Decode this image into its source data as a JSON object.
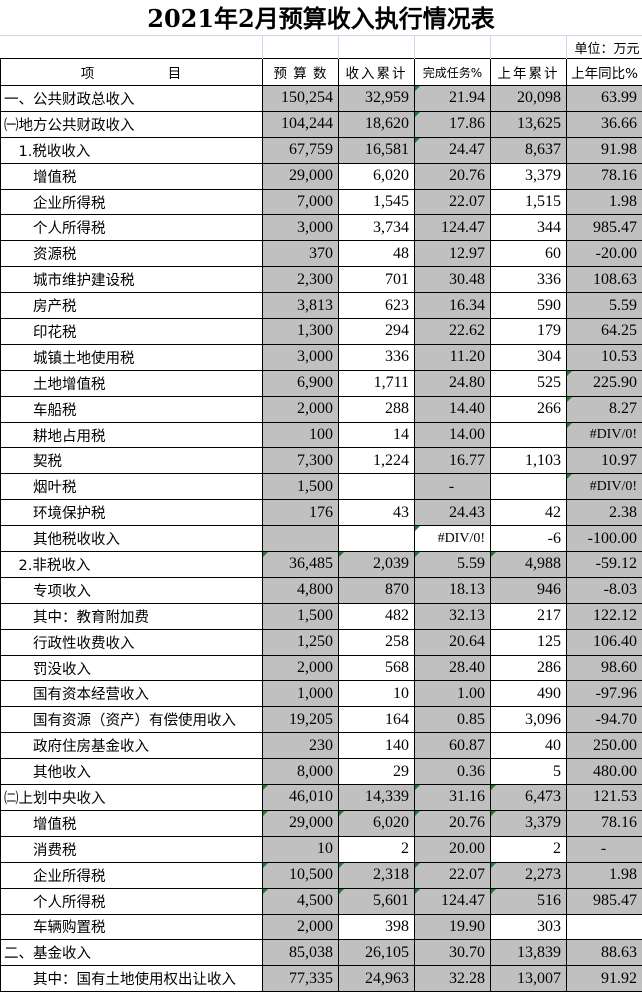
{
  "title": "2021年2月预算收入执行情况表",
  "unit": "单位：万元",
  "headers": [
    "项　　　　　目",
    "预 算 数",
    "收入累计",
    "完成任务%",
    "上年累计",
    "上年同比%"
  ],
  "rows": [
    {
      "item": "一、公共财政总收入",
      "budget": "150,254",
      "income": "32,959",
      "pct": "21.94",
      "prev": "20,098",
      "yoy": "63.99"
    },
    {
      "item": "㈠地方公共财政收入",
      "budget": "104,244",
      "income": "18,620",
      "pct": "17.86",
      "prev": "13,625",
      "yoy": "36.66"
    },
    {
      "item": "　1.税收收入",
      "budget": "67,759",
      "income": "16,581",
      "pct": "24.47",
      "prev": "8,637",
      "yoy": "91.98"
    },
    {
      "item": "　　增值税",
      "budget": "29,000",
      "income": "6,020",
      "pct": "20.76",
      "prev": "3,379",
      "yoy": "78.16"
    },
    {
      "item": "　　企业所得税",
      "budget": "7,000",
      "income": "1,545",
      "pct": "22.07",
      "prev": "1,515",
      "yoy": "1.98"
    },
    {
      "item": "　　个人所得税",
      "budget": "3,000",
      "income": "3,734",
      "pct": "124.47",
      "prev": "344",
      "yoy": "985.47"
    },
    {
      "item": "　　资源税",
      "budget": "370",
      "income": "48",
      "pct": "12.97",
      "prev": "60",
      "yoy": "-20.00"
    },
    {
      "item": "　　城市维护建设税",
      "budget": "2,300",
      "income": "701",
      "pct": "30.48",
      "prev": "336",
      "yoy": "108.63"
    },
    {
      "item": "　　房产税",
      "budget": "3,813",
      "income": "623",
      "pct": "16.34",
      "prev": "590",
      "yoy": "5.59"
    },
    {
      "item": "　　印花税",
      "budget": "1,300",
      "income": "294",
      "pct": "22.62",
      "prev": "179",
      "yoy": "64.25"
    },
    {
      "item": "　　城镇土地使用税",
      "budget": "3,000",
      "income": "336",
      "pct": "11.20",
      "prev": "304",
      "yoy": "10.53"
    },
    {
      "item": "　　土地增值税",
      "budget": "6,900",
      "income": "1,711",
      "pct": "24.80",
      "prev": "525",
      "yoy": "225.90"
    },
    {
      "item": "　　车船税",
      "budget": "2,000",
      "income": "288",
      "pct": "14.40",
      "prev": "266",
      "yoy": "8.27"
    },
    {
      "item": "　　耕地占用税",
      "budget": "100",
      "income": "14",
      "pct": "14.00",
      "prev": "",
      "yoy": "#DIV/0!"
    },
    {
      "item": "　　契税",
      "budget": "7,300",
      "income": "1,224",
      "pct": "16.77",
      "prev": "1,103",
      "yoy": "10.97"
    },
    {
      "item": "　　烟叶税",
      "budget": "1,500",
      "income": "",
      "pct": "-",
      "prev": "",
      "yoy": "#DIV/0!"
    },
    {
      "item": "　　环境保护税",
      "budget": "176",
      "income": "43",
      "pct": "24.43",
      "prev": "42",
      "yoy": "2.38"
    },
    {
      "item": "　　其他税收收入",
      "budget": "",
      "income": "",
      "pct": "#DIV/0!",
      "prev": "-6",
      "yoy": "-100.00"
    },
    {
      "item": "　2.非税收入",
      "budget": "36,485",
      "income": "2,039",
      "pct": "5.59",
      "prev": "4,988",
      "yoy": "-59.12"
    },
    {
      "item": "　　专项收入",
      "budget": "4,800",
      "income": "870",
      "pct": "18.13",
      "prev": "946",
      "yoy": "-8.03"
    },
    {
      "item": "　　其中：教育附加费",
      "budget": "1,500",
      "income": "482",
      "pct": "32.13",
      "prev": "217",
      "yoy": "122.12"
    },
    {
      "item": "　　行政性收费收入",
      "budget": "1,250",
      "income": "258",
      "pct": "20.64",
      "prev": "125",
      "yoy": "106.40"
    },
    {
      "item": "　　罚没收入",
      "budget": "2,000",
      "income": "568",
      "pct": "28.40",
      "prev": "286",
      "yoy": "98.60"
    },
    {
      "item": "　　国有资本经营收入",
      "budget": "1,000",
      "income": "10",
      "pct": "1.00",
      "prev": "490",
      "yoy": "-97.96"
    },
    {
      "item": "　　国有资源（资产）有偿使用收入",
      "budget": "19,205",
      "income": "164",
      "pct": "0.85",
      "prev": "3,096",
      "yoy": "-94.70"
    },
    {
      "item": "　　政府住房基金收入",
      "budget": "230",
      "income": "140",
      "pct": "60.87",
      "prev": "40",
      "yoy": "250.00"
    },
    {
      "item": "　　其他收入",
      "budget": "8,000",
      "income": "29",
      "pct": "0.36",
      "prev": "5",
      "yoy": "480.00"
    },
    {
      "item": "㈡上划中央收入",
      "budget": "46,010",
      "income": "14,339",
      "pct": "31.16",
      "prev": "6,473",
      "yoy": "121.53"
    },
    {
      "item": "　　增值税",
      "budget": "29,000",
      "income": "6,020",
      "pct": "20.76",
      "prev": "3,379",
      "yoy": "78.16"
    },
    {
      "item": "　　消费税",
      "budget": "10",
      "income": "2",
      "pct": "20.00",
      "prev": "2",
      "yoy": "-"
    },
    {
      "item": "　　企业所得税",
      "budget": "10,500",
      "income": "2,318",
      "pct": "22.07",
      "prev": "2,273",
      "yoy": "1.98"
    },
    {
      "item": "　　个人所得税",
      "budget": "4,500",
      "income": "5,601",
      "pct": "124.47",
      "prev": "516",
      "yoy": "985.47"
    },
    {
      "item": "　　车辆购置税",
      "budget": "2,000",
      "income": "398",
      "pct": "19.90",
      "prev": "303",
      "yoy": ""
    },
    {
      "item": "二、基金收入",
      "budget": "85,038",
      "income": "26,105",
      "pct": "30.70",
      "prev": "13,839",
      "yoy": "88.63"
    },
    {
      "item": "　　其中：国有土地使用权出让收入",
      "budget": "77,335",
      "income": "24,963",
      "pct": "32.28",
      "prev": "13,007",
      "yoy": "91.92"
    }
  ]
}
